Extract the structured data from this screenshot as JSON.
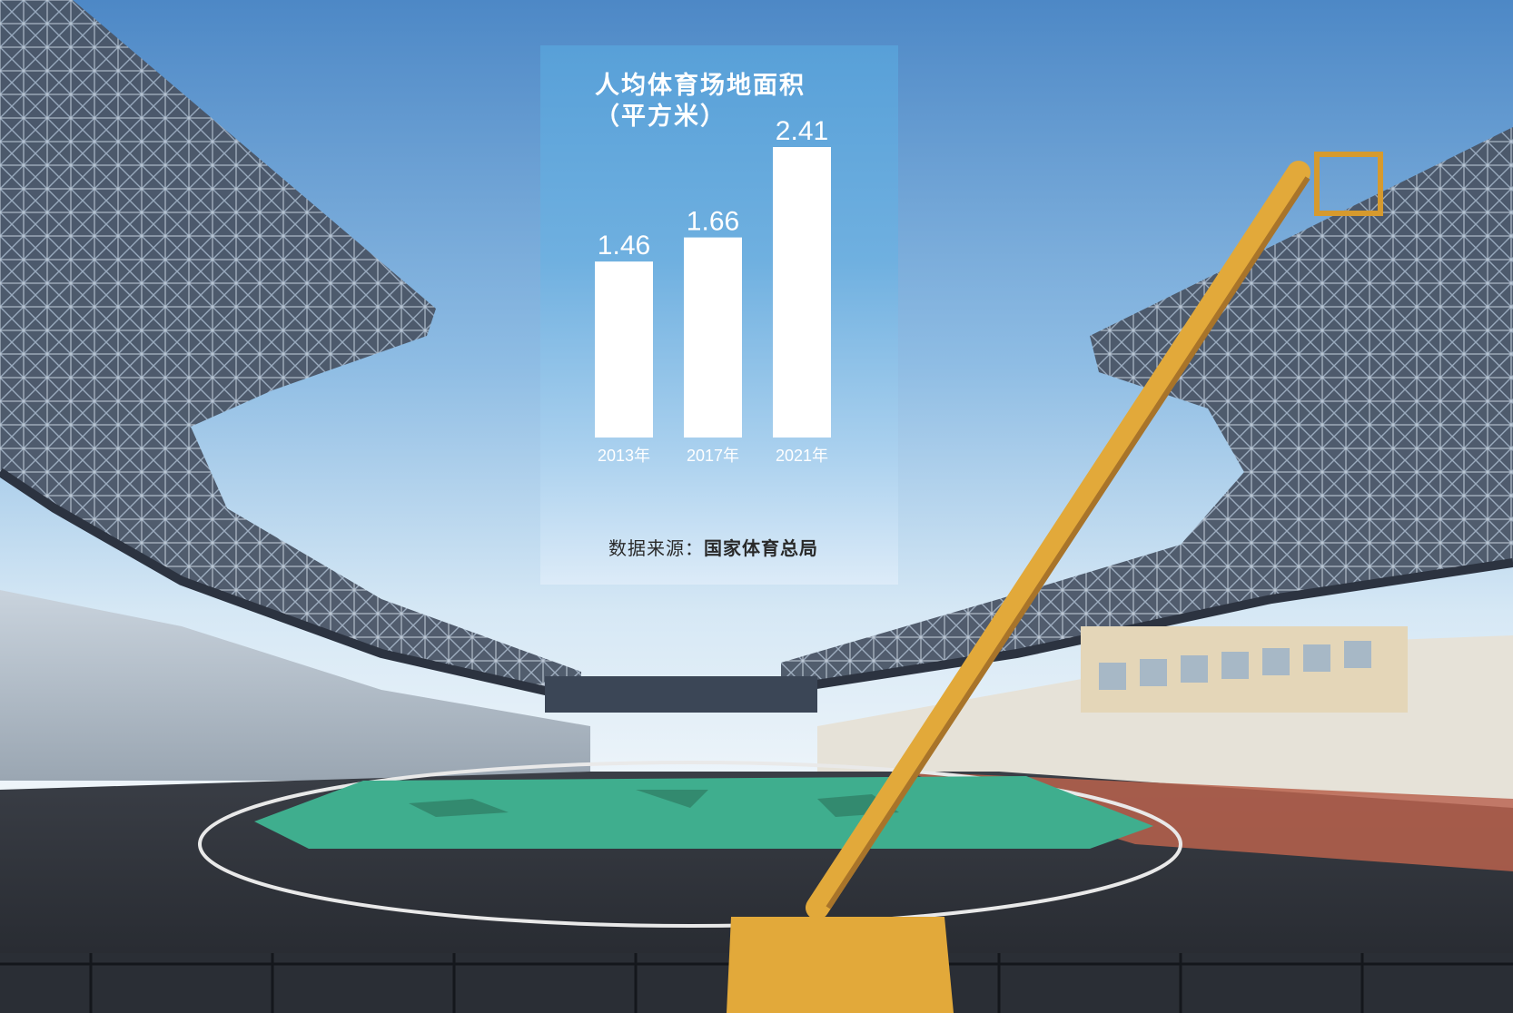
{
  "chart_data": {
    "type": "bar",
    "title": "人均体育场地面积",
    "subtitle": "（平方米）",
    "categories": [
      "2013年",
      "2017年",
      "2021年"
    ],
    "values": [
      1.46,
      1.66,
      2.41
    ],
    "value_labels": [
      "1.46",
      "1.66",
      "2.41"
    ],
    "ylim": [
      0,
      2.41
    ],
    "grid": false,
    "bar_color": "#ffffff"
  },
  "source": {
    "label": "数据来源：",
    "org": "国家体育总局"
  },
  "colors": {
    "sky_top": "#5b95cf",
    "panel_top": "#58a0d8",
    "roof_steel": "#3b4656",
    "field_green": "#3fae8e",
    "crane_yellow": "#e2a93a"
  }
}
